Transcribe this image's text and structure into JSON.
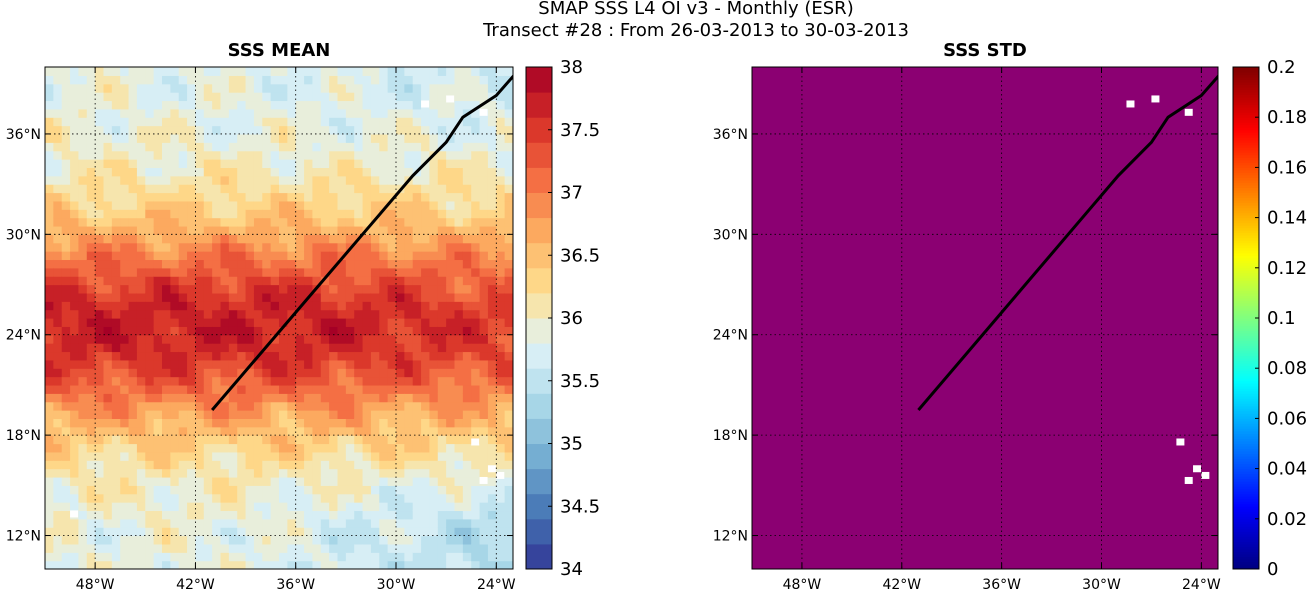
{
  "header": {
    "title_line1": "SMAP SSS L4 OI v3 - Monthly (ESR)",
    "title_line2": "Transect #28 : From 26-03-2013 to 30-03-2013"
  },
  "panels": [
    {
      "id": "mean",
      "title": "SSS MEAN",
      "x_ticks": [
        "48°W",
        "42°W",
        "36°W",
        "30°W",
        "24°W"
      ],
      "x_tick_values": [
        -48,
        -42,
        -36,
        -30,
        -24
      ],
      "y_ticks": [
        "12°N",
        "18°N",
        "24°N",
        "30°N",
        "36°N"
      ],
      "y_tick_values": [
        12,
        18,
        24,
        30,
        36
      ],
      "lon_range": [
        -51,
        -23
      ],
      "lat_range": [
        10,
        40
      ],
      "colorbar": {
        "ticks": [
          "34",
          "34.5",
          "35",
          "35.5",
          "36",
          "36.5",
          "37",
          "37.5",
          "38"
        ],
        "min": 34,
        "max": 38,
        "levels": 20,
        "colormap": "RdYlBu_r"
      }
    },
    {
      "id": "std",
      "title": "SSS STD",
      "x_ticks": [
        "48°W",
        "42°W",
        "36°W",
        "30°W",
        "24°W"
      ],
      "x_tick_values": [
        -48,
        -42,
        -36,
        -30,
        -24
      ],
      "y_ticks": [
        "12°N",
        "18°N",
        "24°N",
        "30°N",
        "36°N"
      ],
      "y_tick_values": [
        12,
        18,
        24,
        30,
        36
      ],
      "lon_range": [
        -51,
        -23
      ],
      "lat_range": [
        10,
        40
      ],
      "field_color": "#8B0072",
      "colorbar": {
        "ticks": [
          "0",
          "0.02",
          "0.04",
          "0.06",
          "0.08",
          "0.1",
          "0.12",
          "0.14",
          "0.16",
          "0.18",
          "0.2"
        ],
        "min": 0,
        "max": 0.2,
        "colormap": "jet"
      }
    }
  ],
  "transect": {
    "lon": [
      -41,
      -38,
      -35,
      -32,
      -29,
      -27,
      -26,
      -24,
      -22.5
    ],
    "lat": [
      19.5,
      23,
      26.5,
      30,
      33.5,
      35.5,
      37,
      38.3,
      40
    ]
  }
}
